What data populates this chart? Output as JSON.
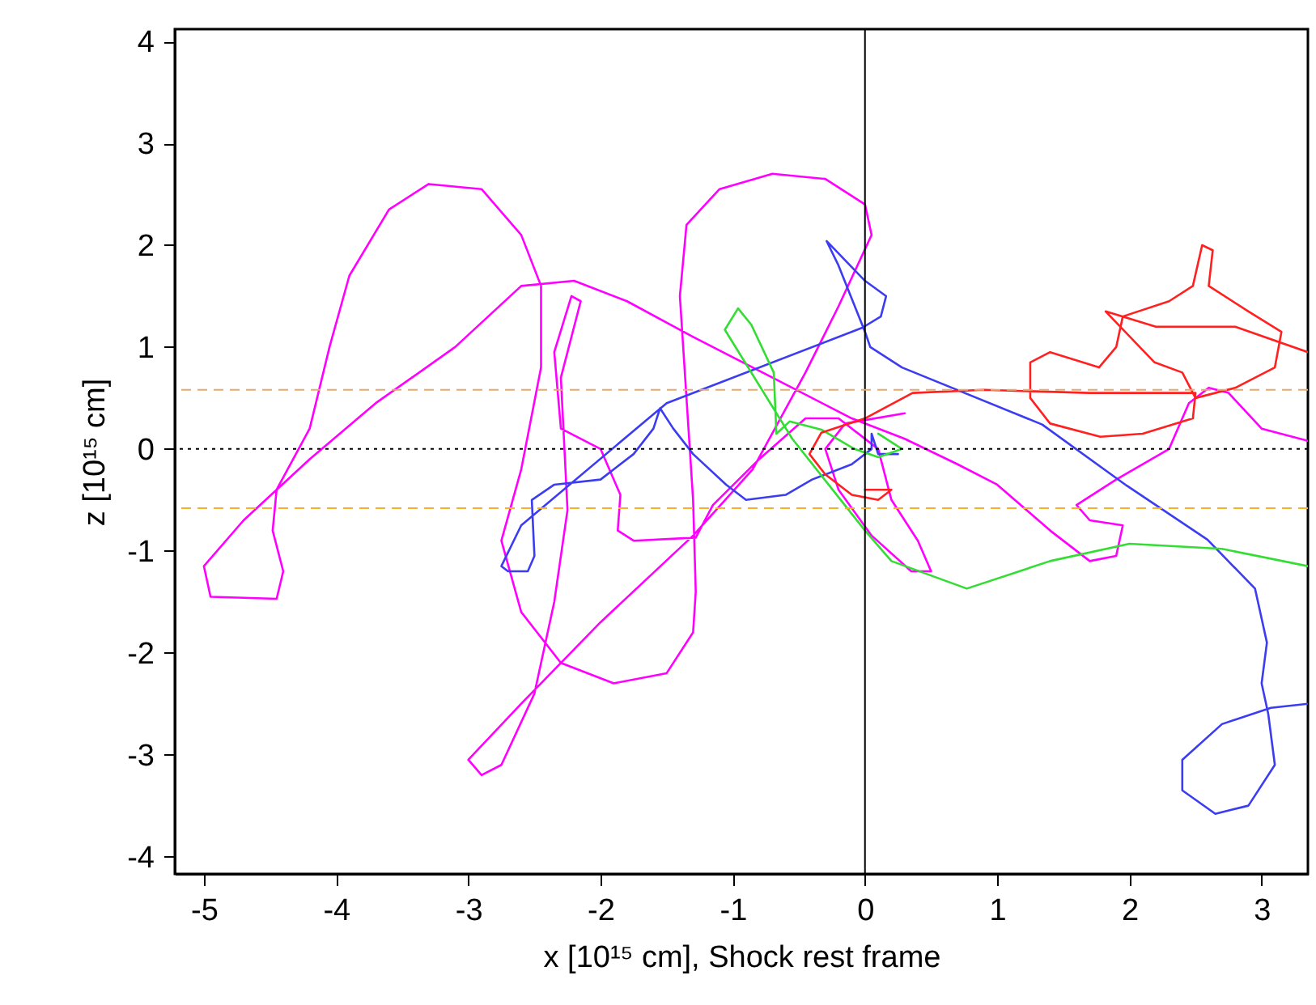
{
  "chart_data": {
    "type": "line",
    "xlabel": "x [10¹⁵ cm], Shock rest frame",
    "ylabel": "z [10¹⁵ cm]",
    "xlim": [
      -5.22,
      3.35
    ],
    "ylim": [
      -4.17,
      4.12
    ],
    "xticks": [
      -5,
      -4,
      -3,
      -2,
      -1,
      0,
      1,
      2,
      3
    ],
    "yticks": [
      -4,
      -3,
      -2,
      -1,
      0,
      1,
      2,
      3,
      4
    ],
    "grid": false,
    "line_style": "solid",
    "ref_lines": [
      {
        "axis": "x",
        "value": 0,
        "color": "#000000",
        "line_style": "solid"
      },
      {
        "axis": "y",
        "value": 0,
        "color": "#000000",
        "line_style": "dotted"
      },
      {
        "axis": "y",
        "value": 0.58,
        "color": "#e8a870",
        "line_style": "dashed"
      },
      {
        "axis": "y",
        "value": -0.58,
        "color": "#f5b030",
        "line_style": "dashed"
      }
    ],
    "series": [
      {
        "color": "#ff00ff",
        "x": [
          3.35,
          3.0,
          2.75,
          2.6,
          2.45,
          2.3,
          1.9,
          1.6,
          1.7,
          1.95,
          1.9,
          1.7,
          1.4,
          1.0,
          0.7,
          0.3,
          -0.1,
          -0.7,
          -1.3,
          -1.8,
          -2.2,
          -2.6,
          -3.1,
          -3.7,
          -4.2,
          -4.7,
          -5.0,
          -4.95,
          -4.45,
          -4.4,
          -4.48,
          -4.45,
          -4.2,
          -4.05,
          -3.9,
          -3.6,
          -3.3,
          -2.9,
          -2.6,
          -2.45,
          -2.45,
          -2.6,
          -2.75,
          -2.6,
          -2.3,
          -1.9,
          -1.5,
          -1.3,
          -1.28,
          -1.3,
          -1.35,
          -1.4,
          -1.35,
          -1.1,
          -0.7,
          -0.3,
          0.0,
          0.05,
          -0.2,
          -0.45,
          -0.85,
          -1.3,
          -2.0,
          -2.6,
          -3.0,
          -2.9,
          -2.75,
          -2.5,
          -2.35,
          -2.25,
          -2.3,
          -2.15,
          -2.22,
          -2.35,
          -2.3,
          -2.0,
          -1.85,
          -1.87,
          -1.75,
          -1.28,
          -1.15,
          -0.8,
          -0.45,
          -0.2,
          0.1,
          0.2,
          0.4,
          0.5,
          0.35,
          0.05,
          -0.2,
          -0.3,
          -0.15,
          0.3
        ],
        "values": [
          0.08,
          0.2,
          0.55,
          0.6,
          0.45,
          0.0,
          -0.3,
          -0.55,
          -0.7,
          -0.75,
          -1.05,
          -1.1,
          -0.8,
          -0.35,
          -0.15,
          0.1,
          0.3,
          0.7,
          1.1,
          1.45,
          1.65,
          1.6,
          1.0,
          0.45,
          -0.1,
          -0.7,
          -1.15,
          -1.45,
          -1.47,
          -1.2,
          -0.8,
          -0.4,
          0.2,
          1.0,
          1.7,
          2.35,
          2.6,
          2.55,
          2.1,
          1.6,
          0.8,
          -0.2,
          -0.9,
          -1.6,
          -2.1,
          -2.3,
          -2.2,
          -1.8,
          -1.4,
          -0.5,
          0.5,
          1.5,
          2.2,
          2.55,
          2.7,
          2.65,
          2.4,
          2.1,
          1.4,
          0.75,
          -0.2,
          -0.85,
          -1.7,
          -2.5,
          -3.05,
          -3.2,
          -3.1,
          -2.4,
          -1.5,
          -0.6,
          0.7,
          1.45,
          1.5,
          0.95,
          0.2,
          0.0,
          -0.45,
          -0.8,
          -0.9,
          -0.87,
          -0.55,
          -0.1,
          0.3,
          0.3,
          0.0,
          -0.5,
          -0.9,
          -1.2,
          -1.2,
          -0.85,
          -0.4,
          0.0,
          0.25,
          0.35
        ]
      },
      {
        "color": "#3c3cf0",
        "x": [
          0.25,
          0.1,
          0.05,
          0.05,
          -0.1,
          -0.4,
          -0.6,
          -0.9,
          -1.05,
          -1.3,
          -1.45,
          -1.55,
          -1.6,
          -1.75,
          -2.0,
          -2.35,
          -2.52,
          -2.5,
          -2.55,
          -2.7,
          -2.75,
          -2.6,
          -1.5,
          -0.02,
          0.12,
          0.16,
          0.0,
          -0.29,
          -0.2,
          0.0,
          0.04,
          0.28,
          1.34,
          1.98,
          2.59,
          2.95,
          3.04,
          3.0,
          3.05,
          3.1,
          2.9,
          2.65,
          2.4,
          2.4,
          2.7,
          3.07,
          3.35
        ],
        "values": [
          -0.05,
          -0.05,
          0.15,
          0.0,
          -0.15,
          -0.3,
          -0.45,
          -0.5,
          -0.35,
          -0.05,
          0.2,
          0.4,
          0.2,
          -0.05,
          -0.3,
          -0.35,
          -0.5,
          -1.05,
          -1.2,
          -1.2,
          -1.15,
          -0.75,
          0.45,
          1.19,
          1.3,
          1.5,
          1.65,
          2.04,
          1.8,
          1.15,
          1.0,
          0.8,
          0.24,
          -0.36,
          -0.89,
          -1.37,
          -1.9,
          -2.3,
          -2.6,
          -3.1,
          -3.5,
          -3.58,
          -3.35,
          -3.05,
          -2.7,
          -2.54,
          -2.5
        ]
      },
      {
        "color": "#33dd33",
        "x": [
          0.1,
          0.28,
          0.1,
          -0.08,
          -0.33,
          -0.57,
          -0.67,
          -0.69,
          -0.86,
          -0.96,
          -1.06,
          -0.55,
          0.0,
          0.2,
          0.77,
          1.4,
          2.0,
          2.7,
          3.35
        ],
        "values": [
          0.15,
          0.0,
          -0.08,
          0.0,
          0.19,
          0.27,
          0.15,
          0.75,
          1.22,
          1.38,
          1.17,
          0.1,
          -0.8,
          -1.1,
          -1.37,
          -1.1,
          -0.93,
          -0.98,
          -1.15
        ]
      },
      {
        "color": "#ff2020",
        "x": [
          0.0,
          0.2,
          0.1,
          -0.1,
          -0.3,
          -0.42,
          -0.33,
          0.0,
          0.36,
          0.9,
          1.7,
          2.5,
          2.48,
          2.1,
          1.78,
          1.4,
          1.25,
          1.25,
          1.4,
          1.77,
          1.9,
          1.95,
          2.3,
          2.48,
          2.55,
          2.63,
          2.6,
          2.9,
          3.15,
          3.1,
          2.8,
          2.5,
          2.4,
          2.19,
          1.82,
          2.2,
          2.8,
          3.35
        ],
        "values": [
          -0.4,
          -0.4,
          -0.5,
          -0.45,
          -0.25,
          -0.05,
          0.16,
          0.3,
          0.55,
          0.58,
          0.55,
          0.55,
          0.3,
          0.15,
          0.12,
          0.25,
          0.5,
          0.85,
          0.95,
          0.8,
          1.0,
          1.3,
          1.45,
          1.6,
          2.0,
          1.95,
          1.6,
          1.35,
          1.15,
          0.8,
          0.6,
          0.5,
          0.75,
          0.85,
          1.35,
          1.2,
          1.2,
          0.95
        ]
      }
    ]
  }
}
